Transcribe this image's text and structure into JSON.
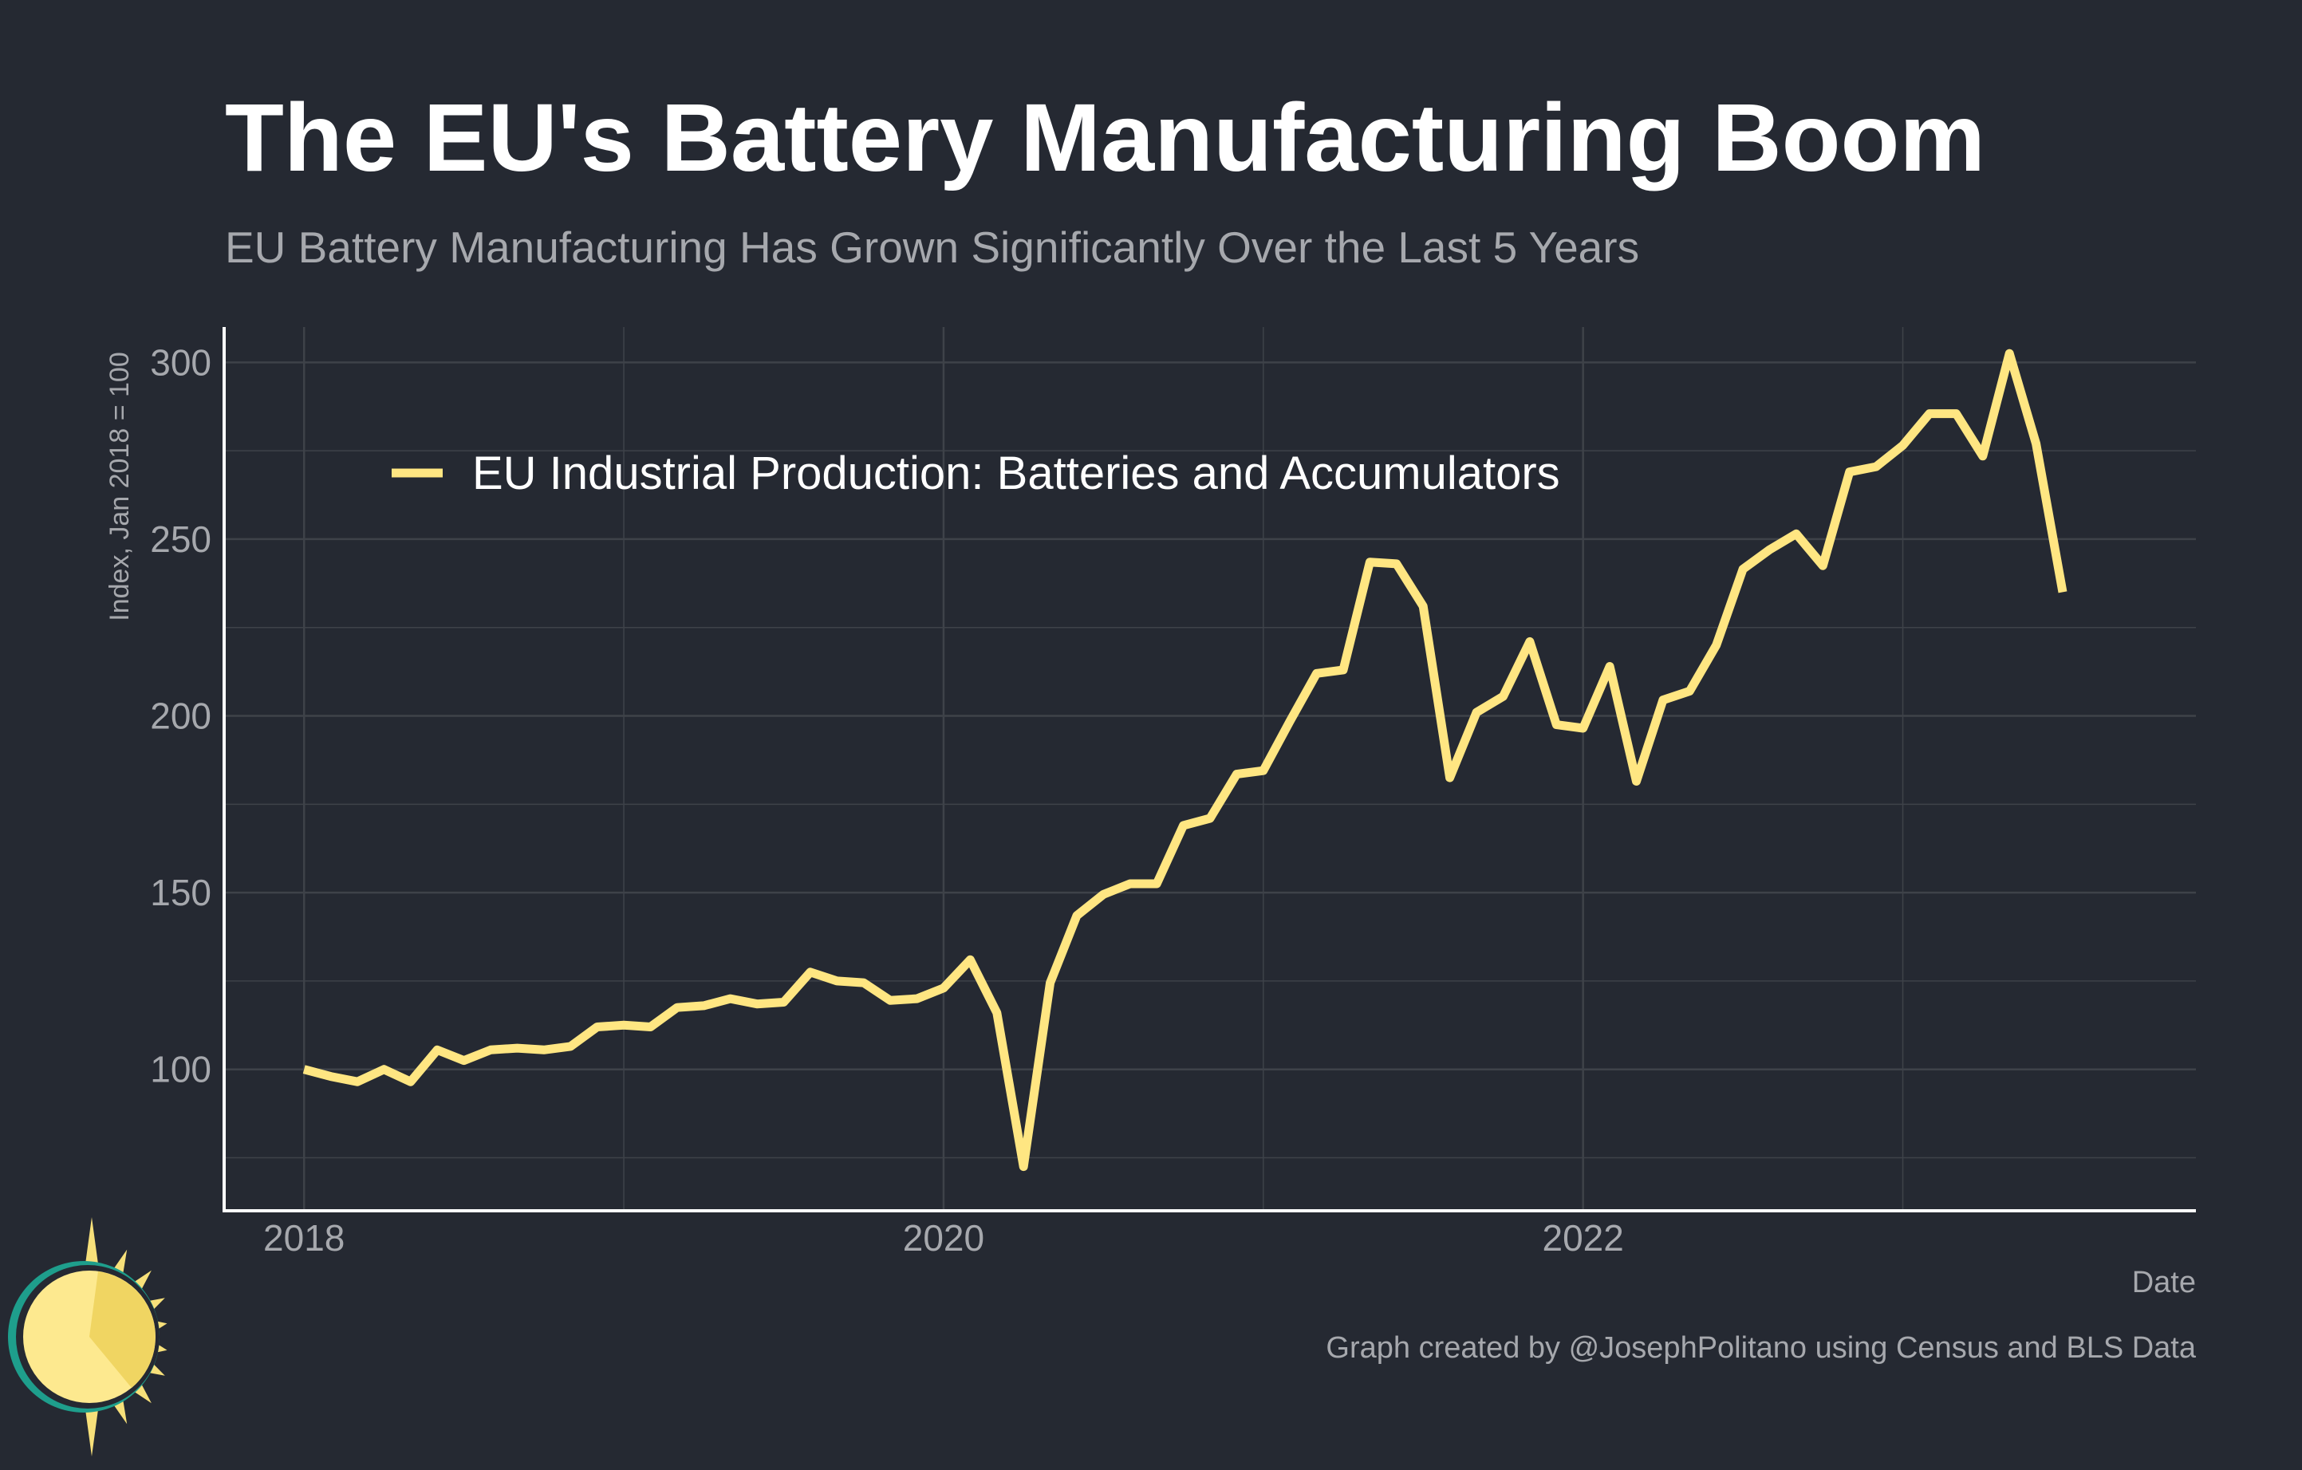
{
  "chart_data": {
    "type": "line",
    "title": "The EU's Battery Manufacturing Boom",
    "subtitle": "EU Battery Manufacturing Has Grown Significantly Over the Last 5 Years",
    "xlabel": "Date",
    "ylabel": "Index, Jan 2018 = 100",
    "caption": "Graph created by @JosephPolitano using Census and BLS Data",
    "x_start": "2018-01",
    "x_frequency": "monthly",
    "xlim": [
      "2017-10",
      "2023-12"
    ],
    "ylim": [
      60,
      310
    ],
    "y_ticks": [
      100,
      150,
      200,
      250,
      300
    ],
    "x_ticks": [
      {
        "date": "2018-01",
        "label": "2018"
      },
      {
        "date": "2020-01",
        "label": "2020"
      },
      {
        "date": "2022-01",
        "label": "2022"
      }
    ],
    "grid": true,
    "legend_position": "top-left",
    "series": [
      {
        "name": "EU Industrial Production: Batteries and Accumulators",
        "color": "#ffe682",
        "values": [
          100,
          98,
          96.5,
          100,
          96.5,
          105.5,
          102.5,
          105.5,
          106,
          105.5,
          106.5,
          112,
          112.5,
          112,
          117.5,
          118,
          120,
          118.5,
          119,
          127.5,
          125,
          124.5,
          119.5,
          120,
          123,
          131,
          116,
          72.5,
          124.5,
          143.5,
          149.5,
          152.5,
          152.5,
          169,
          171,
          183.5,
          184.5,
          198.5,
          212,
          213,
          243.5,
          243,
          231,
          182.5,
          201,
          205.5,
          221,
          197.5,
          196.5,
          214,
          181.5,
          204.5,
          207,
          220,
          241.5,
          247,
          251.5,
          242.5,
          269,
          270.5,
          276.5,
          285.5,
          285.5,
          273.5,
          302.5,
          277,
          235
        ]
      }
    ]
  },
  "colors": {
    "background": "#252932",
    "grid": "#3e4249",
    "axis": "#ffffff",
    "text_muted": "#a6a8ad",
    "line": "#ffe682",
    "logo_sun": "#f7e07a",
    "logo_ring": "#1e9e8c"
  },
  "logo": {
    "icon": "sun-icon"
  }
}
